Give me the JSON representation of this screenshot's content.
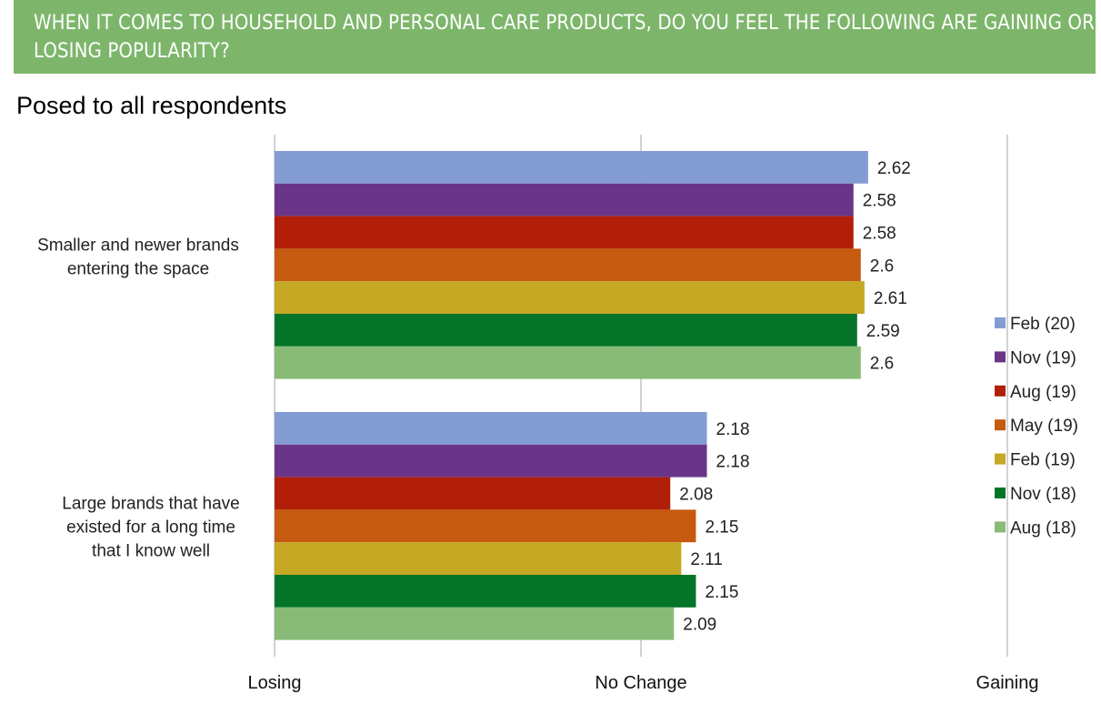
{
  "header": {
    "title": "WHEN IT COMES TO HOUSEHOLD AND PERSONAL CARE PRODUCTS, DO YOU FEEL THE FOLLOWING ARE GAINING OR LOSING POPULARITY?",
    "subtitle": "Posed to all respondents",
    "banner_color": "#7db66b"
  },
  "chart_data": {
    "type": "bar",
    "orientation": "horizontal",
    "categories": [
      "Smaller and newer brands entering the space",
      "Large brands that have existed for a long time that I know well"
    ],
    "series": [
      {
        "name": "Feb (20)",
        "color": "#849cd4",
        "values": [
          2.62,
          2.18
        ]
      },
      {
        "name": "Nov (19)",
        "color": "#6a3589",
        "values": [
          2.58,
          2.18
        ]
      },
      {
        "name": "Aug (19)",
        "color": "#b11f08",
        "values": [
          2.58,
          2.08
        ]
      },
      {
        "name": "May (19)",
        "color": "#c55a10",
        "values": [
          2.6,
          2.15
        ]
      },
      {
        "name": "Feb (19)",
        "color": "#c5a823",
        "values": [
          2.61,
          2.11
        ]
      },
      {
        "name": "Nov (18)",
        "color": "#037428",
        "values": [
          2.59,
          2.15
        ]
      },
      {
        "name": "Aug (18)",
        "color": "#89bb78",
        "values": [
          2.6,
          2.09
        ]
      }
    ],
    "xlim": [
      1,
      3
    ],
    "ticks": [
      {
        "value": 1,
        "label": "Losing"
      },
      {
        "value": 2,
        "label": "No Change"
      },
      {
        "value": 3,
        "label": "Gaining"
      }
    ],
    "grid": true,
    "legend_position": "right"
  }
}
